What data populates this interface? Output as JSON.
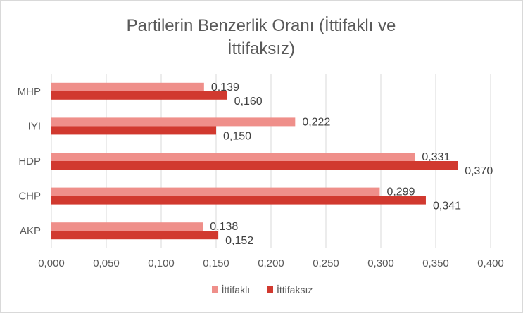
{
  "chart_data": {
    "type": "bar",
    "orientation": "horizontal",
    "title_line1": "Partilerin Benzerlik Oranı (İttifaklı ve",
    "title_line2": "İttifaksız)",
    "categories": [
      "AKP",
      "CHP",
      "HDP",
      "IYI",
      "MHP"
    ],
    "series": [
      {
        "name": "İttifaklı",
        "color": "#ef8f8a",
        "values": [
          0.138,
          0.299,
          0.331,
          0.222,
          0.139
        ],
        "labels": [
          "0,138",
          "0,299",
          "0,331",
          "0,222",
          "0,139"
        ]
      },
      {
        "name": "İttifaksız",
        "color": "#d1392f",
        "values": [
          0.152,
          0.341,
          0.37,
          0.15,
          0.16
        ],
        "labels": [
          "0,152",
          "0,341",
          "0,370",
          "0,150",
          "0,160"
        ]
      }
    ],
    "xlim": [
      0,
      0.4
    ],
    "x_ticks": [
      0,
      0.05,
      0.1,
      0.15,
      0.2,
      0.25,
      0.3,
      0.35,
      0.4
    ],
    "x_tick_labels": [
      "0,000",
      "0,050",
      "0,100",
      "0,150",
      "0,200",
      "0,250",
      "0,300",
      "0,350",
      "0,400"
    ],
    "grid": "vertical",
    "legend_position": "bottom"
  }
}
